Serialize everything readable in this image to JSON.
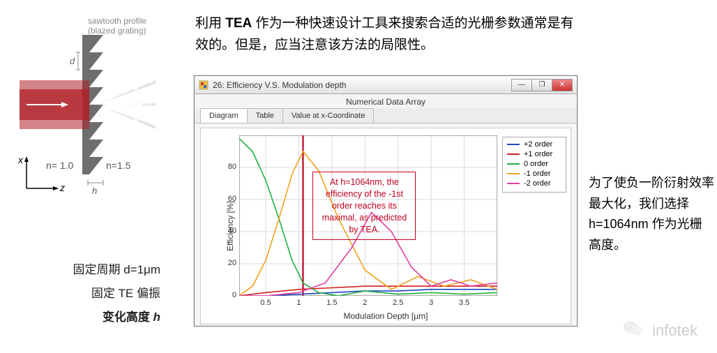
{
  "intro": {
    "line1_prefix": "利用 ",
    "tea": "TEA",
    "line1_suffix": " 作为一种快速设计工具来搜索合适的光栅参数通常是有效的。但是，应当注意该方法的局限性。"
  },
  "left": {
    "sawtooth_label1": "sawtooth profile",
    "sawtooth_label2": "(blazed grating)",
    "d_label": "d",
    "h_label": "h",
    "n_left": "n= 1.0",
    "n_right": "n=1.5",
    "order_labels": [
      "T+1",
      "T0",
      "T-1"
    ],
    "axis_x": "x",
    "axis_z": "z",
    "fixed_period": "固定周期 d=1μm",
    "fixed_pol": "固定 TE 偏振",
    "var_height_prefix": "变化高度 ",
    "var_height_h": "h"
  },
  "window": {
    "title": "26: Efficiency V.S. Modulation depth",
    "subtitle": "Numerical Data Array",
    "tabs": [
      "Diagram",
      "Table",
      "Value at x-Coordinate"
    ],
    "active_tab": 0,
    "win_min": "—",
    "win_max": "❐",
    "win_close": "✕"
  },
  "chart": {
    "type": "line",
    "xlabel": "Modulation Depth  [μm]",
    "ylabel": "Efficiency [%]",
    "xlim": [
      0.1,
      4.0
    ],
    "ylim": [
      0,
      100
    ],
    "xticks": [
      0.5,
      1.0,
      1.5,
      2.0,
      2.5,
      3.0,
      3.5
    ],
    "yticks": [
      0,
      20,
      40,
      60,
      80
    ],
    "background_color": "#ffffff",
    "grid_color": "#d8d8d8",
    "axis_color": "#555555",
    "line_width": 1.6,
    "marker_line": {
      "x": 1.064,
      "color": "#c00020",
      "width": 2.2
    },
    "series": [
      {
        "name": "+2 order",
        "color": "#2048c8",
        "x": [
          0.1,
          0.5,
          1.0,
          1.5,
          2.0,
          2.5,
          3.0,
          3.5,
          4.0
        ],
        "y": [
          0,
          0,
          1,
          2,
          3,
          3,
          4,
          4,
          4
        ]
      },
      {
        "name": "+1 order",
        "color": "#d02020",
        "x": [
          0.1,
          0.5,
          1.0,
          1.5,
          2.0,
          2.5,
          3.0,
          3.5,
          4.0
        ],
        "y": [
          0,
          2,
          4,
          5,
          6,
          6,
          6,
          6,
          6
        ]
      },
      {
        "name": "0 order",
        "color": "#20b040",
        "x": [
          0.1,
          0.3,
          0.5,
          0.7,
          0.9,
          1.064,
          1.3,
          1.6,
          2.0,
          2.5,
          3.0,
          3.5,
          4.0
        ],
        "y": [
          98,
          90,
          72,
          48,
          22,
          8,
          2,
          0,
          3,
          1,
          2,
          1,
          2
        ]
      },
      {
        "name": "-1 order",
        "color": "#f0a020",
        "x": [
          0.1,
          0.3,
          0.5,
          0.7,
          0.9,
          1.064,
          1.3,
          1.6,
          2.0,
          2.4,
          2.8,
          3.2,
          3.6,
          4.0
        ],
        "y": [
          0,
          6,
          22,
          48,
          76,
          90,
          78,
          48,
          16,
          4,
          12,
          6,
          10,
          4
        ]
      },
      {
        "name": "-2 order",
        "color": "#e040a0",
        "x": [
          0.1,
          0.5,
          1.0,
          1.4,
          1.8,
          2.1,
          2.4,
          2.7,
          3.0,
          3.3,
          3.6,
          4.0
        ],
        "y": [
          0,
          0,
          2,
          8,
          30,
          52,
          40,
          18,
          6,
          10,
          6,
          8
        ]
      }
    ],
    "legend_fontsize": 11,
    "label_fontsize": 12
  },
  "callout": {
    "text": "At h=1064nm, the efficiency of the -1st order reaches its maximal, as predicted by TEA."
  },
  "right": {
    "text": "为了使负一阶衍射效率最大化，我们选择 h=1064nm 作为光栅高度。"
  },
  "watermark": {
    "text": "infotek"
  }
}
